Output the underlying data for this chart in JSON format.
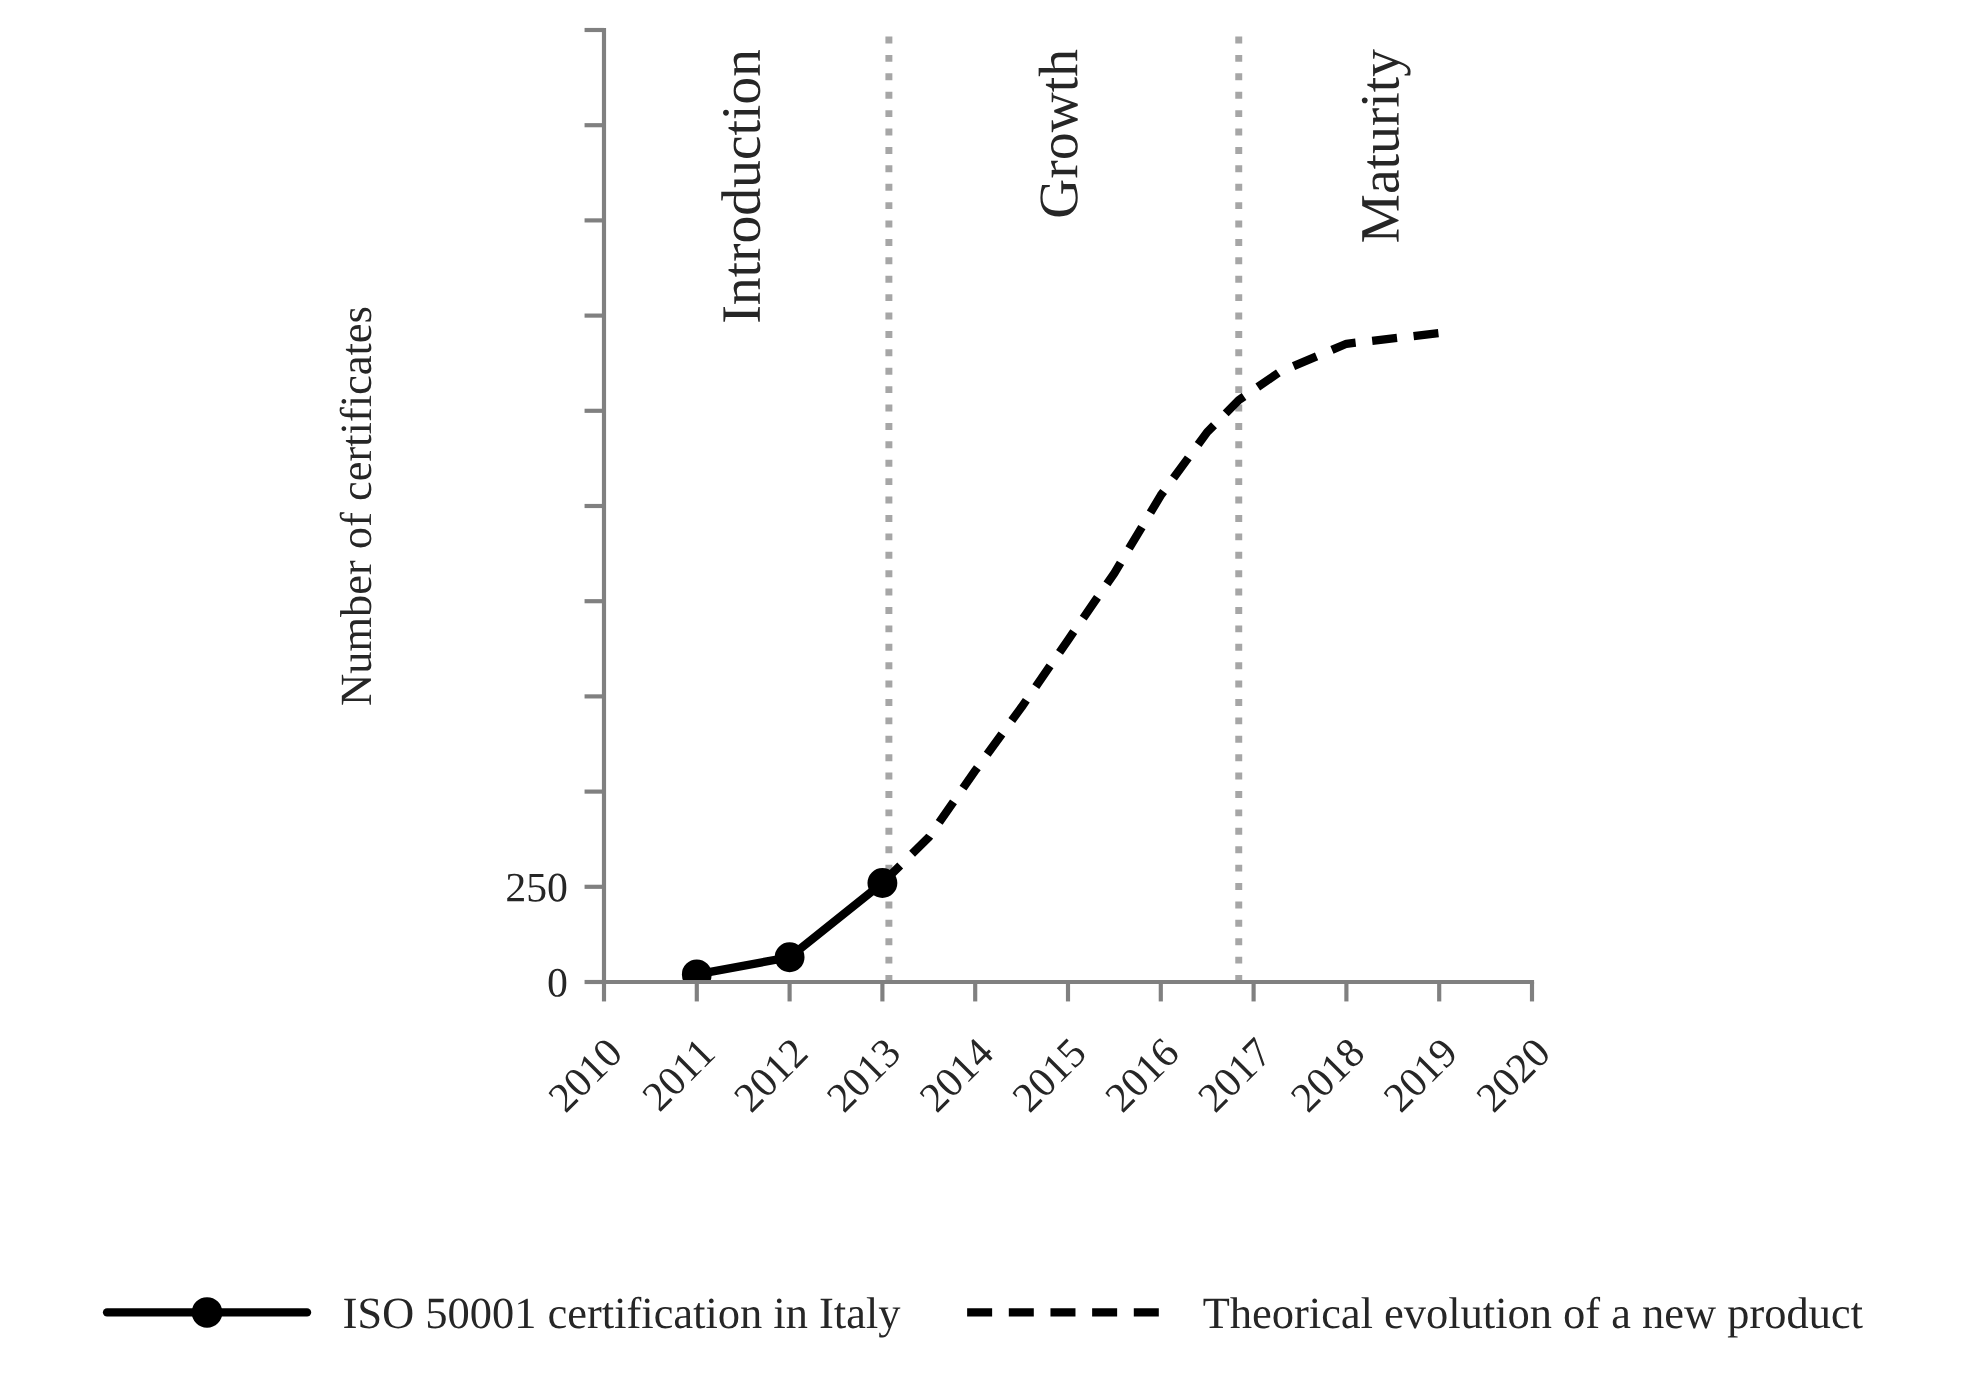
{
  "chart_data": {
    "type": "line",
    "ylabel": "Number of certificates",
    "xlim": [
      2010,
      2020
    ],
    "xticks": [
      2010,
      2011,
      2012,
      2013,
      2014,
      2015,
      2016,
      2017,
      2018,
      2019,
      2020
    ],
    "ylim": [
      0,
      2500
    ],
    "yticks": [
      0,
      250,
      {
        "value": 500,
        "label": null
      },
      {
        "value": 750,
        "label": null
      },
      {
        "value": 1000,
        "label": null
      },
      {
        "value": 1250,
        "label": null
      },
      {
        "value": 1500,
        "label": null
      },
      {
        "value": 1750,
        "label": null
      },
      {
        "value": 2000,
        "label": null
      },
      {
        "value": 2250,
        "label": null
      },
      {
        "value": 2500,
        "label": null
      }
    ],
    "series": [
      {
        "name": "ISO 50001 certification in Italy",
        "color": "#000000",
        "marker": "circle",
        "line_style": "solid",
        "x": [
          2011,
          2012,
          2013
        ],
        "values": [
          20,
          65,
          260
        ]
      },
      {
        "name": "Theorical evolution of a new product",
        "color": "#000000",
        "marker": "none",
        "line_style": "dashed",
        "x": [
          2013,
          2013.5,
          2014,
          2014.5,
          2015,
          2015.5,
          2016,
          2016.5,
          2016.84,
          2017.28,
          2018,
          2019
        ],
        "values": [
          260,
          380,
          555,
          722,
          898,
          1074,
          1278,
          1444,
          1528,
          1602,
          1676,
          1704
        ]
      }
    ],
    "ref_lines": [
      {
        "axis": "x",
        "value": 2013.07,
        "color": "#a6a6a6",
        "line_style": "dotted"
      },
      {
        "axis": "x",
        "value": 2016.84,
        "color": "#a6a6a6",
        "line_style": "dotted"
      }
    ],
    "annotations": [
      "Introduction",
      "Growth",
      "Maturity"
    ],
    "grid": false,
    "legend": "bottom"
  }
}
